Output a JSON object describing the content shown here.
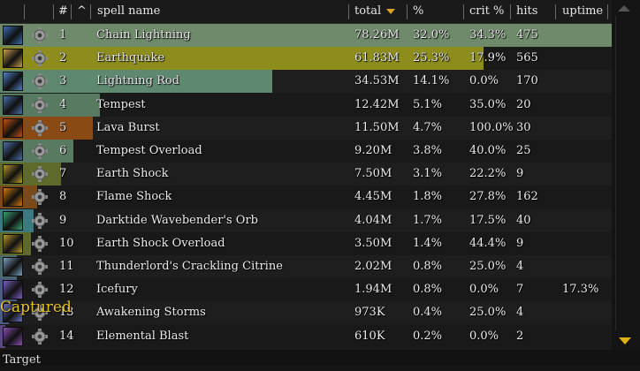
{
  "header": {
    "col_rank": "#",
    "col_caret": "^",
    "col_spell": "spell name",
    "col_total": "total",
    "col_pct": "%",
    "col_crit": "crit %",
    "col_hits": "hits",
    "col_uptime": "uptime"
  },
  "overlay": {
    "captured": "Captured"
  },
  "footer": {
    "label": "Target"
  },
  "colors": {
    "nature": "#7b9070",
    "earthquake": "#8a8a1c",
    "lightning": "#5f8a78",
    "fire": "#8a4a16",
    "orb": "#3a7a80",
    "citrine": "#4a6a70",
    "empty": "#2a2a2a"
  },
  "rows": [
    {
      "rank": "1",
      "name": "Chain Lightning",
      "total": "78.26M",
      "pct": "32.0%",
      "crit": "34.3%",
      "hits": "475",
      "uptime": "",
      "bar_fraction": 1.0,
      "bar_color": "#6e8a6a",
      "icon": "chain-lightning-icon",
      "icon_color": "#3a6fb0"
    },
    {
      "rank": "2",
      "name": "Earthquake",
      "total": "61.83M",
      "pct": "25.3%",
      "crit": "17.9%",
      "hits": "565",
      "uptime": "",
      "bar_fraction": 0.79,
      "bar_color": "#8d8d1d",
      "icon": "earthquake-icon",
      "icon_color": "#c89a50"
    },
    {
      "rank": "3",
      "name": "Lightning Rod",
      "total": "34.53M",
      "pct": "14.1%",
      "crit": "0.0%",
      "hits": "170",
      "uptime": "",
      "bar_fraction": 0.445,
      "bar_color": "#5e8870",
      "icon": "lightning-rod-icon",
      "icon_color": "#5080c8"
    },
    {
      "rank": "4",
      "name": "Tempest",
      "total": "12.42M",
      "pct": "5.1%",
      "crit": "35.0%",
      "hits": "20",
      "uptime": "",
      "bar_fraction": 0.163,
      "bar_color": "#587a60",
      "icon": "tempest-icon",
      "icon_color": "#4a6fa8"
    },
    {
      "rank": "5",
      "name": "Lava Burst",
      "total": "11.50M",
      "pct": "4.7%",
      "crit": "100.0%",
      "hits": "30",
      "uptime": "",
      "bar_fraction": 0.152,
      "bar_color": "#8a4a14",
      "icon": "lava-burst-icon",
      "icon_color": "#c05018"
    },
    {
      "rank": "6",
      "name": "Tempest Overload",
      "total": "9.20M",
      "pct": "3.8%",
      "crit": "40.0%",
      "hits": "25",
      "uptime": "",
      "bar_fraction": 0.12,
      "bar_color": "#587a60",
      "icon": "tempest-overload-icon",
      "icon_color": "#4a6fa8"
    },
    {
      "rank": "7",
      "name": "Earth Shock",
      "total": "7.50M",
      "pct": "3.1%",
      "crit": "22.2%",
      "hits": "9",
      "uptime": "",
      "bar_fraction": 0.1,
      "bar_color": "#5d6a2a",
      "icon": "earth-shock-icon",
      "icon_color": "#b89a30"
    },
    {
      "rank": "8",
      "name": "Flame Shock",
      "total": "4.45M",
      "pct": "1.8%",
      "crit": "27.8%",
      "hits": "162",
      "uptime": "",
      "bar_fraction": 0.06,
      "bar_color": "#7a4a1a",
      "icon": "flame-shock-icon",
      "icon_color": "#d07a10"
    },
    {
      "rank": "9",
      "name": "Darktide Wavebender's Orb",
      "total": "4.04M",
      "pct": "1.7%",
      "crit": "17.5%",
      "hits": "40",
      "uptime": "",
      "bar_fraction": 0.055,
      "bar_color": "#3a7a80",
      "icon": "orb-icon",
      "icon_color": "#3aa070"
    },
    {
      "rank": "10",
      "name": "Earth Shock Overload",
      "total": "3.50M",
      "pct": "1.4%",
      "crit": "44.4%",
      "hits": "9",
      "uptime": "",
      "bar_fraction": 0.05,
      "bar_color": "#5d6a2a",
      "icon": "earth-shock-overload-icon",
      "icon_color": "#b89a30"
    },
    {
      "rank": "11",
      "name": "Thunderlord's Crackling Citrine",
      "total": "2.02M",
      "pct": "0.8%",
      "crit": "25.0%",
      "hits": "4",
      "uptime": "",
      "bar_fraction": 0.028,
      "bar_color": "#4a6a70",
      "icon": "citrine-icon",
      "icon_color": "#7aa0c0"
    },
    {
      "rank": "12",
      "name": "Icefury",
      "total": "1.94M",
      "pct": "0.8%",
      "crit": "0.0%",
      "hits": "7",
      "uptime": "17.3%",
      "bar_fraction": 0.027,
      "bar_color": "#4a5a80",
      "icon": "icefury-icon",
      "icon_color": "#7a60c0"
    },
    {
      "rank": "13",
      "name": "Awakening Storms",
      "total": "973K",
      "pct": "0.4%",
      "crit": "25.0%",
      "hits": "4",
      "uptime": "",
      "bar_fraction": 0.014,
      "bar_color": "#4a5a80",
      "icon": "awakening-storms-icon",
      "icon_color": "#6a70c0"
    },
    {
      "rank": "14",
      "name": "Elemental Blast",
      "total": "610K",
      "pct": "0.2%",
      "crit": "0.0%",
      "hits": "2",
      "uptime": "",
      "bar_fraction": 0.009,
      "bar_color": "#5a4a80",
      "icon": "elemental-blast-icon",
      "icon_color": "#8a50b0"
    }
  ]
}
